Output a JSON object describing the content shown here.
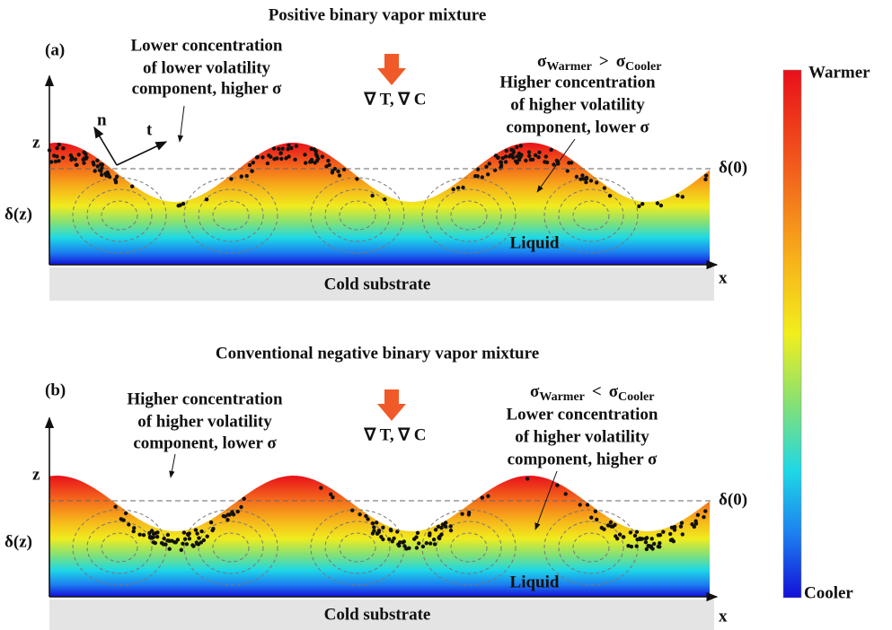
{
  "panels": [
    {
      "title": "Positive binary vapor mixture",
      "label": "(a)",
      "gradient_label": "∇ T, ∇ C",
      "left_note": [
        "Lower concentration",
        "of lower volatility",
        "component,  higher σ"
      ],
      "right_note": [
        "Higher concentration",
        "of higher volatility",
        "component,  lower σ"
      ],
      "sigma": {
        "symbol": "σ",
        "left_sub": "Warmer",
        "relation": ">",
        "right_sub": "Cooler"
      },
      "axis_z": "z",
      "axis_x": "x",
      "thickness_local": "δ(z)",
      "thickness_mean": "δ(0)",
      "liquid": "Liquid",
      "substrate": "Cold substrate",
      "normal": "n",
      "tangent": "t"
    },
    {
      "title": "Conventional negative binary vapor mixture",
      "label": "(b)",
      "gradient_label": "∇ T, ∇ C",
      "left_note": [
        "Higher concentration",
        "of higher volatility",
        "component,  lower σ"
      ],
      "right_note": [
        "Lower concentration",
        "of higher volatility",
        "component, higher σ"
      ],
      "sigma": {
        "symbol": "σ",
        "left_sub": "Warmer",
        "relation": "<",
        "right_sub": "Cooler"
      },
      "axis_z": "z",
      "axis_x": "x",
      "thickness_local": "δ(z)",
      "thickness_mean": "δ(0)",
      "liquid": "Liquid",
      "substrate": "Cold substrate"
    }
  ],
  "colorbar": {
    "top": "Warmer",
    "bottom": "Cooler"
  }
}
